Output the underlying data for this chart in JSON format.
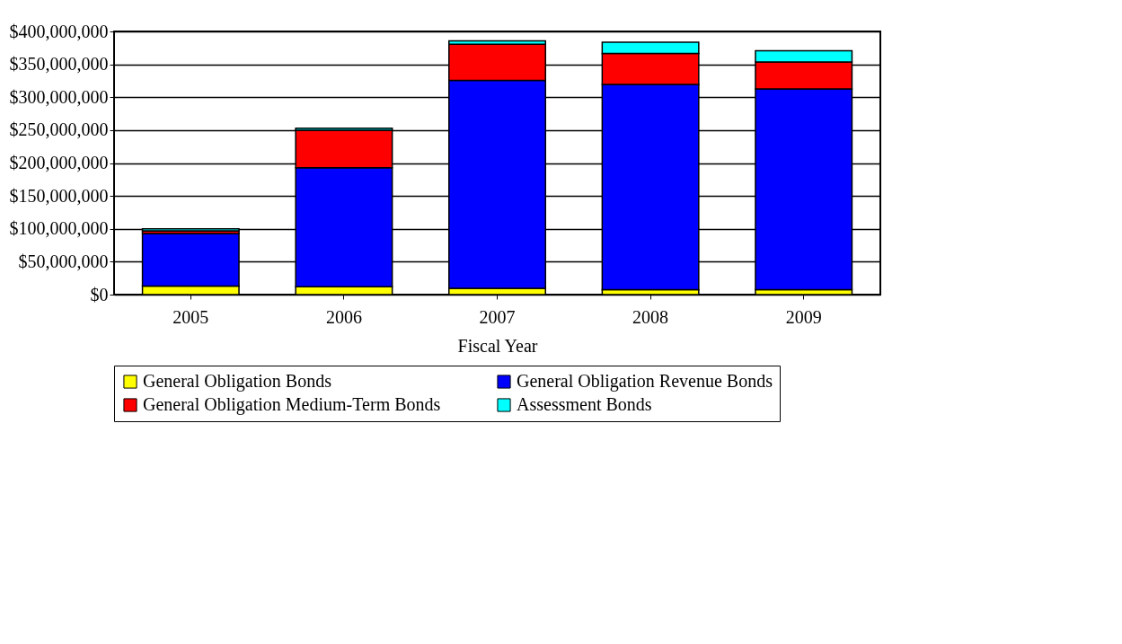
{
  "chart_data": {
    "type": "bar",
    "stacked": true,
    "xlabel": "Fiscal Year",
    "categories": [
      "2005",
      "2006",
      "2007",
      "2008",
      "2009"
    ],
    "series": [
      {
        "name": "General Obligation Bonds",
        "color": "#ffff00",
        "values": [
          13000000,
          12000000,
          9500000,
          7500000,
          7500000
        ]
      },
      {
        "name": "General Obligation Revenue Bonds",
        "color": "#0000ff",
        "values": [
          80000000,
          181000000,
          316000000,
          312000000,
          305000000
        ]
      },
      {
        "name": "General Obligation Medium-Term Bonds",
        "color": "#ff0000",
        "values": [
          4000000,
          57000000,
          55000000,
          47000000,
          41000000
        ]
      },
      {
        "name": "Assessment Bonds",
        "color": "#00ffff",
        "values": [
          3000000,
          3000000,
          5000000,
          17000000,
          17000000
        ]
      }
    ],
    "ylim": [
      0,
      400000000
    ],
    "yticks": [
      {
        "value": 0,
        "label": "$0"
      },
      {
        "value": 50000000,
        "label": "$50,000,000"
      },
      {
        "value": 100000000,
        "label": "$100,000,000"
      },
      {
        "value": 150000000,
        "label": "$150,000,000"
      },
      {
        "value": 200000000,
        "label": "$200,000,000"
      },
      {
        "value": 250000000,
        "label": "$250,000,000"
      },
      {
        "value": 300000000,
        "label": "$300,000,000"
      },
      {
        "value": 350000000,
        "label": "$350,000,000"
      },
      {
        "value": 400000000,
        "label": "$400,000,000"
      }
    ],
    "grid": "y",
    "legend": "bottom"
  }
}
